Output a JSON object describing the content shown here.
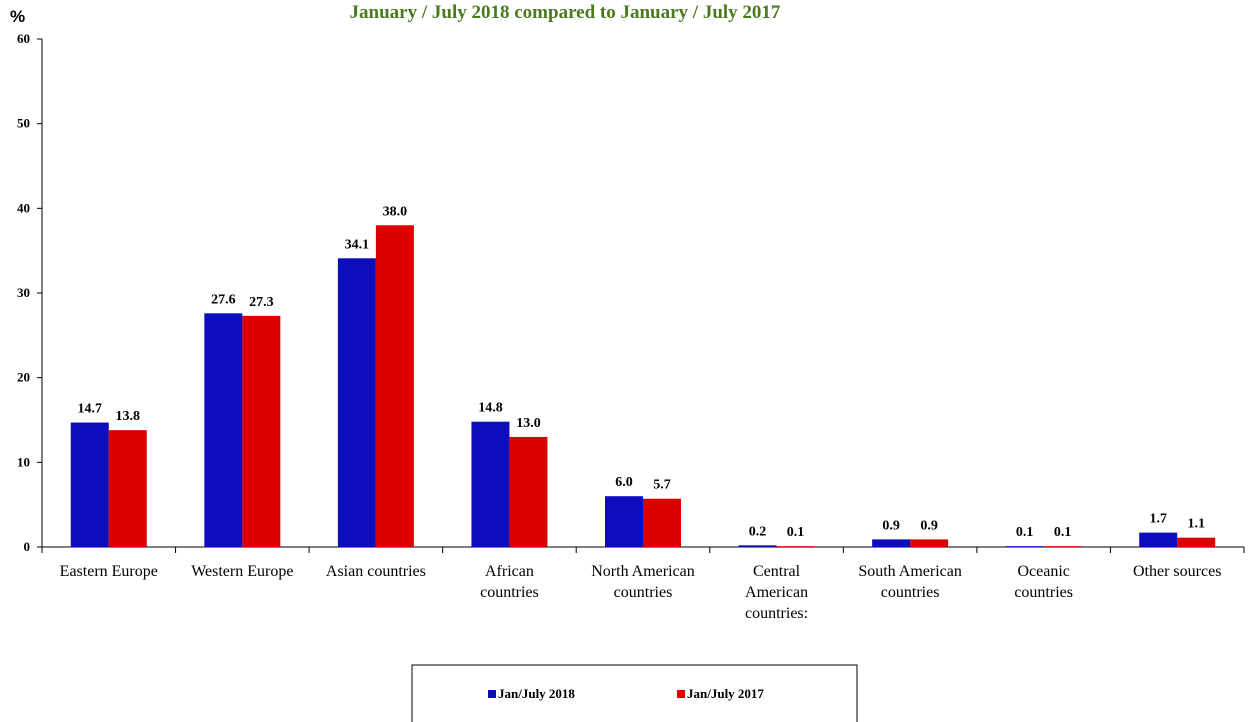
{
  "chart_data": {
    "type": "bar",
    "title": "January / July  2018 compared to January / July  2017",
    "ylabel": "%",
    "xlabel": "",
    "ylim": [
      0,
      60
    ],
    "yticks": [
      0,
      10,
      20,
      30,
      40,
      50,
      60
    ],
    "grid": false,
    "legend_position": "bottom",
    "categories": [
      [
        "Eastern Europe"
      ],
      [
        "Western Europe"
      ],
      [
        "Asian countries"
      ],
      [
        "African",
        "countries"
      ],
      [
        "North American",
        "countries"
      ],
      [
        "Central",
        "American",
        "countries:"
      ],
      [
        "South American",
        "countries"
      ],
      [
        "Oceanic",
        "countries"
      ],
      [
        "Other sources"
      ]
    ],
    "series": [
      {
        "name": "Jan/July 2018",
        "color": "#0d0dbb",
        "values": [
          14.7,
          27.6,
          34.1,
          14.8,
          6.0,
          0.2,
          0.9,
          0.1,
          1.7
        ],
        "labels": [
          "14.7",
          "27.6",
          "34.1",
          "14.8",
          "6.0",
          "0.2",
          "0.9",
          "0.1",
          "1.7"
        ]
      },
      {
        "name": "Jan/July 2017",
        "color": "#dd0000",
        "values": [
          13.8,
          27.3,
          38.0,
          13.0,
          5.7,
          0.1,
          0.9,
          0.1,
          1.1
        ],
        "labels": [
          "13.8",
          "27.3",
          "38.0",
          "13.0",
          "5.7",
          "0.1",
          "0.9",
          "0.1",
          "1.1"
        ]
      }
    ]
  }
}
